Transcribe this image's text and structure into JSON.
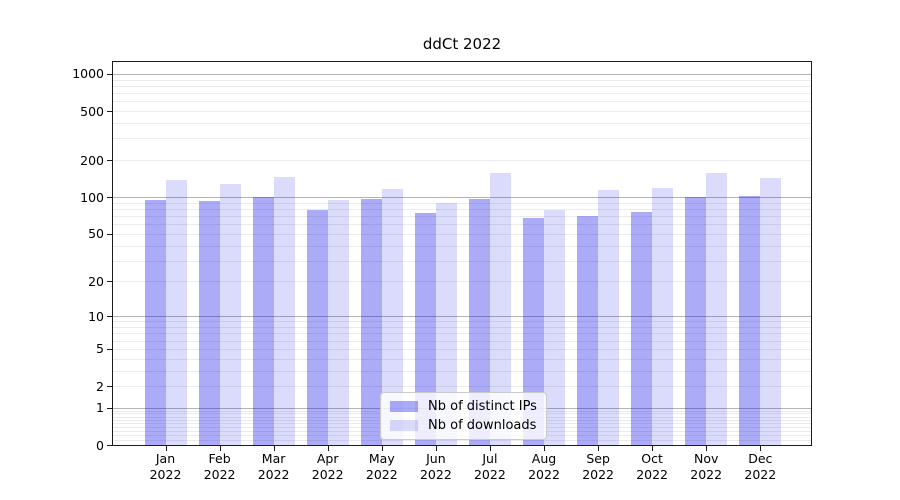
{
  "chart_data": {
    "type": "bar",
    "title": "ddCt 2022",
    "categories": [
      "Jan",
      "Feb",
      "Mar",
      "Apr",
      "May",
      "Jun",
      "Jul",
      "Aug",
      "Sep",
      "Oct",
      "Nov",
      "Dec"
    ],
    "category_year": "2022",
    "series": [
      {
        "name": "Nb of distinct IPs",
        "color": "rgba(13,13,234,0.345)",
        "values": [
          95,
          93,
          100,
          79,
          97,
          74,
          97,
          68,
          70,
          76,
          101,
          103
        ]
      },
      {
        "name": "Nb of downloads",
        "color": "rgba(13,13,234,0.15)",
        "values": [
          139,
          127,
          146,
          94,
          116,
          89,
          156,
          79,
          114,
          118,
          158,
          144
        ]
      }
    ],
    "yscale": "log1p",
    "ylim": [
      0,
      1225
    ],
    "yticks": [
      0,
      1,
      2,
      5,
      10,
      20,
      50,
      100,
      200,
      500,
      1000
    ],
    "grid": "major-and-minor",
    "grid_major_color": "#b3b3b3",
    "grid_minor_color": "#ebebeb",
    "legend_position": "lower center",
    "xlabel": "",
    "ylabel": ""
  }
}
